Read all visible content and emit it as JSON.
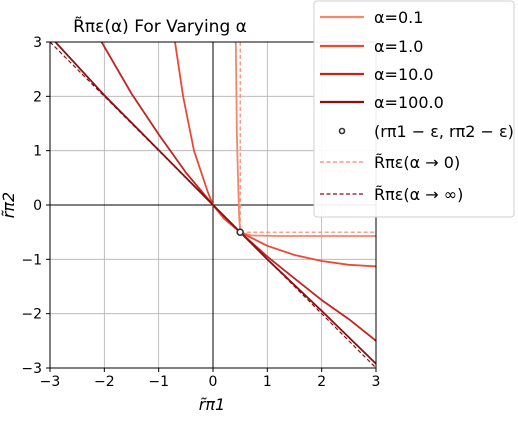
{
  "chart_data": {
    "type": "line",
    "title": "R̃πε(α) For Varying α",
    "xlabel": "r̃π1",
    "ylabel": "r̃π2",
    "xlim": [
      -3,
      3
    ],
    "ylim": [
      -3,
      3
    ],
    "x_ticks": [
      -3,
      -2,
      -1,
      0,
      1,
      2,
      3
    ],
    "y_ticks": [
      -3,
      -2,
      -1,
      0,
      1,
      2,
      3
    ],
    "x_tick_labels": [
      "−3",
      "−2",
      "−1",
      "0",
      "1",
      "2",
      "3"
    ],
    "y_tick_labels": [
      "−3",
      "−2",
      "−1",
      "0",
      "1",
      "2",
      "3"
    ],
    "grid": true,
    "legend_position": "top-right",
    "point": {
      "x": 0.5,
      "y": -0.5
    },
    "series": [
      {
        "name": "α=0.1",
        "color": "#f4866c",
        "style": "solid",
        "segments": [
          [
            [
              0.42,
              3.0
            ],
            [
              0.44,
              1.3
            ],
            [
              0.46,
              0.5
            ],
            [
              0.48,
              -0.2
            ],
            [
              0.5,
              -0.5
            ],
            [
              0.7,
              -0.56
            ],
            [
              1.2,
              -0.57
            ],
            [
              3.0,
              -0.57
            ]
          ]
        ]
      },
      {
        "name": "α=1.0",
        "color": "#e84a36",
        "style": "solid",
        "segments": [
          [
            [
              -0.7,
              3.0
            ],
            [
              -0.55,
              2.0
            ],
            [
              -0.35,
              1.0
            ],
            [
              -0.1,
              0.25
            ],
            [
              0.0,
              0.0
            ],
            [
              0.2,
              -0.25
            ],
            [
              0.5,
              -0.5
            ],
            [
              1.0,
              -0.75
            ],
            [
              1.5,
              -0.92
            ],
            [
              2.0,
              -1.03
            ],
            [
              2.5,
              -1.1
            ],
            [
              3.0,
              -1.13
            ]
          ]
        ]
      },
      {
        "name": "α=10.0",
        "color": "#c3241f",
        "style": "solid",
        "segments": [
          [
            [
              -2.05,
              3.0
            ],
            [
              -1.5,
              2.05
            ],
            [
              -1.0,
              1.3
            ],
            [
              -0.5,
              0.6
            ],
            [
              0.0,
              0.0
            ],
            [
              0.5,
              -0.5
            ],
            [
              1.0,
              -0.95
            ],
            [
              1.5,
              -1.35
            ],
            [
              2.0,
              -1.75
            ],
            [
              2.5,
              -2.1
            ],
            [
              3.0,
              -2.5
            ]
          ]
        ]
      },
      {
        "name": "α=100.0",
        "color": "#8b0f10",
        "style": "solid",
        "segments": [
          [
            [
              -2.9,
              3.0
            ],
            [
              -2.0,
              2.02
            ],
            [
              -1.0,
              1.01
            ],
            [
              0.0,
              0.0
            ],
            [
              0.5,
              -0.5
            ],
            [
              1.0,
              -1.0
            ],
            [
              2.0,
              -1.95
            ],
            [
              3.0,
              -2.92
            ]
          ]
        ]
      },
      {
        "name": "R̃πε(α→0)",
        "color": "#f4866c",
        "style": "dashed",
        "segments": [
          [
            [
              0.5,
              3.0
            ],
            [
              0.5,
              -0.5
            ]
          ],
          [
            [
              0.5,
              -0.5
            ],
            [
              3.0,
              -0.5
            ]
          ]
        ]
      },
      {
        "name": "R̃πε(α→∞)",
        "color": "#8b0f10",
        "style": "dashed",
        "segments": [
          [
            [
              -3.0,
              3.0
            ],
            [
              3.0,
              -3.0
            ]
          ]
        ]
      }
    ],
    "legend": [
      {
        "label": "α=0.1",
        "kind": "line",
        "color": "#f4866c",
        "style": "solid"
      },
      {
        "label": "α=1.0",
        "kind": "line",
        "color": "#e84a36",
        "style": "solid"
      },
      {
        "label": "α=10.0",
        "kind": "line",
        "color": "#c3241f",
        "style": "solid"
      },
      {
        "label": "α=100.0",
        "kind": "line",
        "color": "#8b0f10",
        "style": "solid"
      },
      {
        "label": "(rπ1 − ε,  rπ2 − ε)",
        "kind": "marker",
        "color": "#333333"
      },
      {
        "label": "R̃πε(α → 0)",
        "kind": "line",
        "color": "#f4866c",
        "style": "dashed"
      },
      {
        "label": "R̃πε(α → ∞)",
        "kind": "line",
        "color": "#8b0f10",
        "style": "dashed"
      }
    ]
  }
}
